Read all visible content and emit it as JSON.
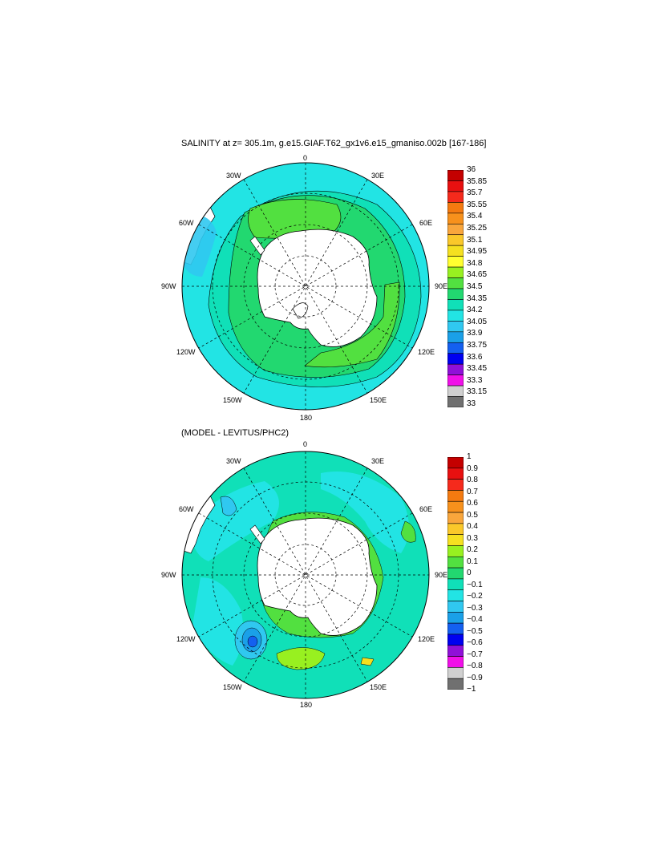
{
  "panels": [
    {
      "title": "SALINITY at z= 305.1m, g.e15.GIAF.T62_gx1v6.e15_gmaniso.002b [167-186]",
      "lon_labels": [
        "0",
        "30E",
        "60E",
        "90E",
        "120E",
        "150E",
        "180",
        "150W",
        "120W",
        "90W",
        "60W",
        "30W"
      ],
      "colorbar": {
        "labels": [
          "36",
          "35.85",
          "35.7",
          "35.55",
          "35.4",
          "35.25",
          "35.1",
          "34.95",
          "34.8",
          "34.65",
          "34.5",
          "34.35",
          "34.2",
          "34.05",
          "33.9",
          "33.75",
          "33.6",
          "33.45",
          "33.3",
          "33.15",
          "33"
        ],
        "colors": [
          "#c40000",
          "#e81010",
          "#f52a1c",
          "#f47a10",
          "#f7911c",
          "#f9a63c",
          "#fac82a",
          "#f5e020",
          "#ffff30",
          "#98f020",
          "#52e040",
          "#22d870",
          "#10e0b8",
          "#22e4e4",
          "#30c8f0",
          "#1aa0e8",
          "#1460f0",
          "#0000f0",
          "#9010d8",
          "#f010e8",
          "#d0d0d0",
          "#707070"
        ]
      }
    },
    {
      "title": "(MODEL - LEVITUS/PHC2)",
      "lon_labels": [
        "0",
        "30E",
        "60E",
        "90E",
        "120E",
        "150E",
        "180",
        "150W",
        "120W",
        "90W",
        "60W",
        "30W"
      ],
      "colorbar": {
        "labels": [
          "1",
          "0.9",
          "0.8",
          "0.7",
          "0.6",
          "0.5",
          "0.4",
          "0.3",
          "0.2",
          "0.1",
          "0",
          "−0.1",
          "−0.2",
          "−0.3",
          "−0.4",
          "−0.5",
          "−0.6",
          "−0.7",
          "−0.8",
          "−0.9",
          "−1"
        ],
        "colors": [
          "#c40000",
          "#e81010",
          "#f52a1c",
          "#f47a10",
          "#f7911c",
          "#f9a63c",
          "#fac82a",
          "#f5e020",
          "#98f020",
          "#52e040",
          "#22d870",
          "#10e0b8",
          "#22e4e4",
          "#30c8f0",
          "#1aa0e8",
          "#1460f0",
          "#0000f0",
          "#9010d8",
          "#f010e8",
          "#d0d0d0",
          "#707070"
        ]
      }
    }
  ]
}
